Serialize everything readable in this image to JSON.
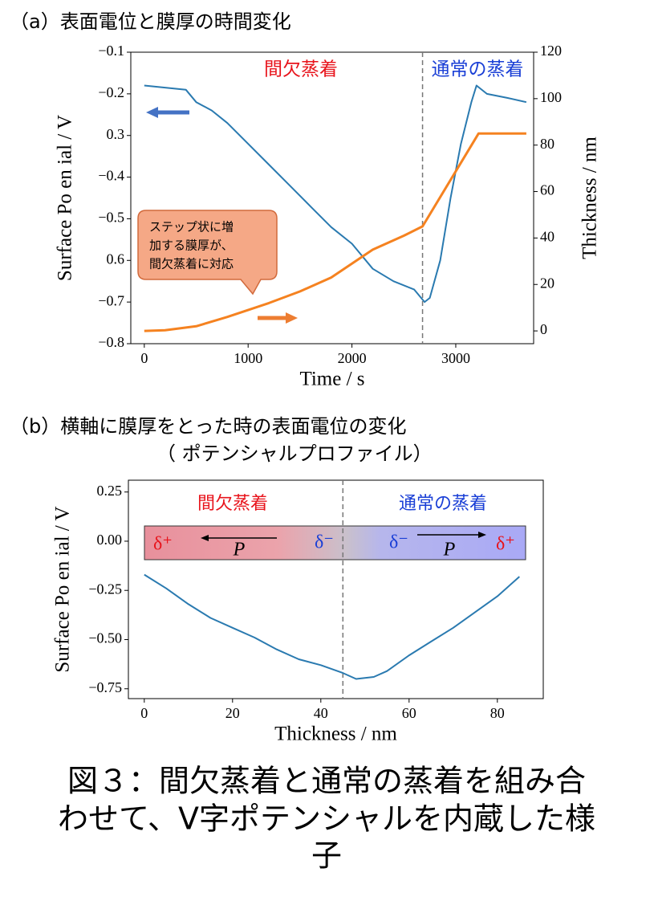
{
  "chart_data": [
    {
      "type": "line",
      "title": "（a）表面電位と膜厚の時間変化",
      "xlabel": "Time / s",
      "ylabel": "Surface Po en ial / V",
      "y2label": "Thickness / nm",
      "xlim": [
        -130,
        3750
      ],
      "xticks": [
        0,
        1000,
        2000,
        3000
      ],
      "ylim": [
        -0.8,
        -0.1
      ],
      "yticks": [
        {
          "value": -0.8,
          "label": "−0.8"
        },
        {
          "value": -0.7,
          "label": "−0.7"
        },
        {
          "value": -0.6,
          "label": "0.6"
        },
        {
          "value": -0.5,
          "label": "−0.5"
        },
        {
          "value": -0.4,
          "label": "−0.4"
        },
        {
          "value": -0.3,
          "label": "0.3"
        },
        {
          "value": -0.2,
          "label": "−0.2"
        },
        {
          "value": -0.1,
          "label": "−0.1"
        }
      ],
      "y2lim": [
        -5.5,
        120
      ],
      "y2ticks": [
        0,
        20,
        40,
        60,
        80,
        100,
        120
      ],
      "vline": 2680,
      "annotations": [
        "間欠蒸着",
        "通常の蒸着",
        "ステップ状に増",
        "加する膜厚が、",
        "間欠蒸着に対応"
      ],
      "series": [
        {
          "name": "Surface Potential",
          "color": "#2a7ab0",
          "axis": "y",
          "x": [
            0,
            200,
            400,
            500,
            650,
            800,
            1000,
            1200,
            1400,
            1600,
            1800,
            2000,
            2200,
            2400,
            2600,
            2700,
            2750,
            2850,
            2950,
            3050,
            3150,
            3200,
            3300,
            3500,
            3680
          ],
          "values": [
            -0.18,
            -0.185,
            -0.19,
            -0.22,
            -0.24,
            -0.27,
            -0.32,
            -0.37,
            -0.42,
            -0.47,
            -0.52,
            -0.56,
            -0.62,
            -0.65,
            -0.67,
            -0.7,
            -0.69,
            -0.6,
            -0.45,
            -0.32,
            -0.22,
            -0.18,
            -0.2,
            -0.21,
            -0.22
          ]
        },
        {
          "name": "Thickness",
          "color": "#f58220",
          "axis": "y2",
          "x": [
            0,
            200,
            500,
            800,
            1000,
            1200,
            1500,
            1800,
            2000,
            2200,
            2500,
            2680,
            3220,
            3680
          ],
          "values": [
            0,
            0.3,
            2,
            6,
            9,
            12,
            17,
            23,
            29,
            35,
            41,
            45,
            85,
            85
          ]
        }
      ]
    },
    {
      "type": "line",
      "title": "（b）横軸に膜厚をとった時の表面電位の変化",
      "subtitle": "（ ポテンシャルプロファイル）",
      "xlabel": "Thickness / nm",
      "ylabel": "Surface Po en ial / V",
      "xlim": [
        -3.6,
        90.4
      ],
      "xticks": [
        0,
        20,
        40,
        60,
        80
      ],
      "ylim": [
        -0.8,
        0.31
      ],
      "yticks": [
        {
          "value": -0.75,
          "label": "−0.75"
        },
        {
          "value": -0.5,
          "label": "−0.50"
        },
        {
          "value": -0.25,
          "label": "−0.25"
        },
        {
          "value": 0,
          "label": "0.00"
        },
        0.25
      ],
      "vline": 45,
      "annotations": [
        "間欠蒸着",
        "通常の蒸着",
        "δ⁺",
        "P",
        "δ⁻",
        "δ⁻",
        "P",
        "δ⁺"
      ],
      "series": [
        {
          "name": "Surface Potential",
          "color": "#2a7ab0",
          "axis": "y",
          "x": [
            0,
            5,
            10,
            15,
            20,
            25,
            30,
            35,
            40,
            45,
            48,
            52,
            55,
            60,
            65,
            70,
            75,
            80,
            85
          ],
          "values": [
            -0.17,
            -0.24,
            -0.32,
            -0.39,
            -0.44,
            -0.49,
            -0.55,
            -0.6,
            -0.63,
            -0.67,
            -0.7,
            -0.69,
            -0.66,
            -0.58,
            -0.51,
            -0.44,
            -0.36,
            -0.28,
            -0.18
          ]
        }
      ]
    }
  ],
  "caption": [
    "図３：間欠蒸着と通常の蒸着を組み合",
    "わせて、V字ポテンシャルを内蔵した様",
    "子"
  ]
}
